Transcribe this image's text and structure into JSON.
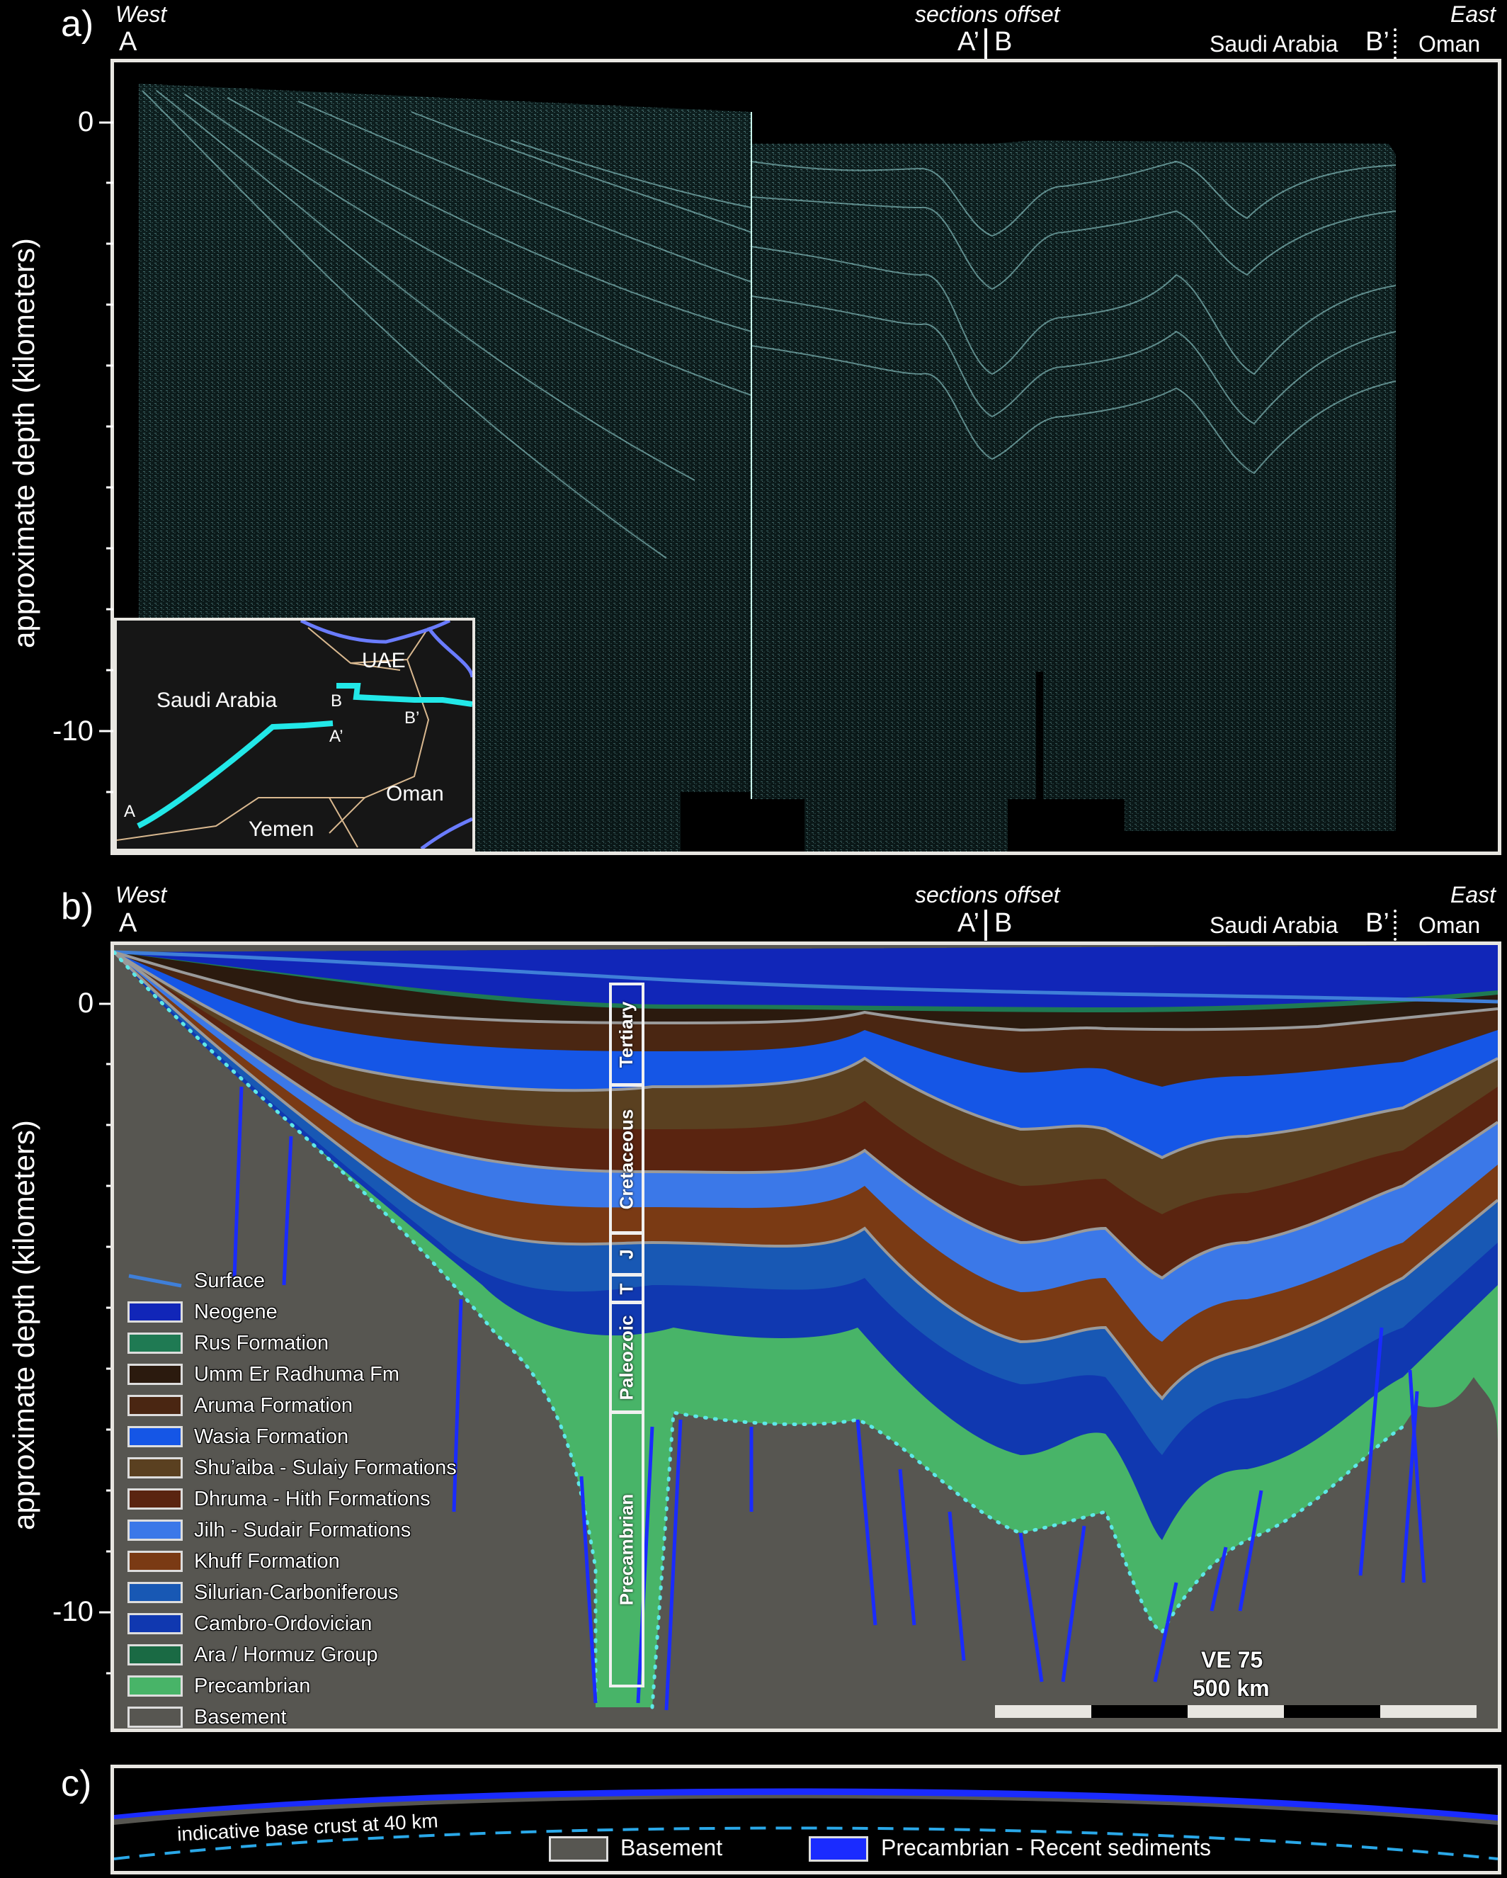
{
  "panel_a": {
    "letter": "a)",
    "west": "West",
    "east": "East",
    "point_a": "A",
    "sections_offset": "sections offset",
    "point_a_prime": "A’",
    "point_b": "B",
    "saudi_arabia": "Saudi Arabia",
    "point_b_prime": "B’",
    "oman": "Oman",
    "y_label": "approximate depth (kilometers)",
    "y_ticks": [
      "0",
      "-10"
    ],
    "inset_map": {
      "uae": "UAE",
      "saudi_arabia": "Saudi Arabia",
      "oman": "Oman",
      "yemen": "Yemen",
      "pt_a": "A",
      "pt_a_prime": "A’",
      "pt_b": "B",
      "pt_b_prime": "B’"
    }
  },
  "panel_b": {
    "letter": "b)",
    "west": "West",
    "east": "East",
    "point_a": "A",
    "sections_offset": "sections offset",
    "point_a_prime": "A’",
    "point_b": "B",
    "saudi_arabia": "Saudi Arabia",
    "point_b_prime": "B’",
    "oman": "Oman",
    "y_label": "approximate depth (kilometers)",
    "y_ticks": [
      "0",
      "-10"
    ],
    "strat_column": [
      "Tertiary",
      "Cretaceous",
      "J",
      "T",
      "Paleozoic",
      "Precambrian"
    ],
    "legend": [
      {
        "label": "Surface",
        "color": "#3f7fd8"
      },
      {
        "label": "Neogene",
        "color": "#1126b8"
      },
      {
        "label": "Rus Formation",
        "color": "#1f7a53"
      },
      {
        "label": "Umm Er Radhuma Fm",
        "color": "#2b1a0e"
      },
      {
        "label": "Aruma Formation",
        "color": "#4a2612"
      },
      {
        "label": "Wasia Formation",
        "color": "#1556e6"
      },
      {
        "label": "Shu’aiba - Sulaiy Formations",
        "color": "#5a4020"
      },
      {
        "label": "Dhruma - Hith Formations",
        "color": "#5a2410"
      },
      {
        "label": "Jilh - Sudair Formations",
        "color": "#3b78e8"
      },
      {
        "label": "Khuff Formation",
        "color": "#7a3a14"
      },
      {
        "label": "Silurian-Carboniferous",
        "color": "#1858b4"
      },
      {
        "label": "Cambro-Ordovician",
        "color": "#1038b0"
      },
      {
        "label": "Ara / Hormuz Group",
        "color": "#1a6a44"
      },
      {
        "label": "Precambrian",
        "color": "#48b468"
      },
      {
        "label": "Basement",
        "color": "#575651"
      }
    ],
    "ve": "VE 75",
    "scale": "500 km"
  },
  "panel_c": {
    "letter": "c)",
    "crust_label": "indicative base crust at 40 km",
    "legend_basement": "Basement",
    "legend_sediments": "Precambrian - Recent sediments"
  }
}
